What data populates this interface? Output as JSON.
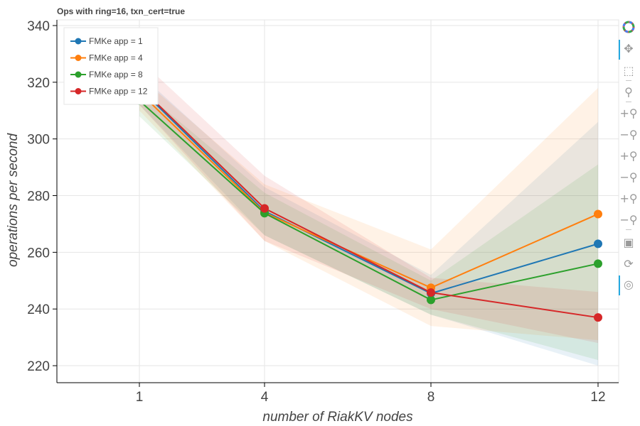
{
  "chart_data": {
    "type": "line",
    "title": "Ops with ring=16, txn_cert=true",
    "xlabel": "number of RiakKV nodes",
    "ylabel": "operations per second",
    "x_categories": [
      "1",
      "4",
      "8",
      "12"
    ],
    "ylim": [
      214,
      342
    ],
    "yticks": [
      220,
      240,
      260,
      280,
      300,
      320,
      340
    ],
    "grid": true,
    "legend_position": "top-left",
    "series": [
      {
        "name": "FMKe app = 1",
        "color": "#1f77b4",
        "values": [
          318.0,
          274.5,
          245.5,
          263.0
        ],
        "band_low": [
          312.0,
          266.0,
          238.0,
          220.0
        ],
        "band_high": [
          323.0,
          283.0,
          252.0,
          306.0
        ]
      },
      {
        "name": "FMKe app = 4",
        "color": "#ff7f0e",
        "values": [
          316.5,
          274.0,
          247.5,
          273.5
        ],
        "band_low": [
          310.0,
          264.0,
          234.0,
          229.0
        ],
        "band_high": [
          322.0,
          284.0,
          261.0,
          318.0
        ]
      },
      {
        "name": "FMKe app = 8",
        "color": "#2ca02c",
        "values": [
          313.5,
          273.8,
          243.2,
          256.0
        ],
        "band_low": [
          308.0,
          266.0,
          238.0,
          222.0
        ],
        "band_high": [
          318.0,
          281.0,
          250.0,
          291.0
        ]
      },
      {
        "name": "FMKe app = 12",
        "color": "#d62728",
        "values": [
          318.5,
          275.5,
          245.8,
          237.0
        ],
        "band_low": [
          312.0,
          264.0,
          240.0,
          228.0
        ],
        "band_high": [
          328.0,
          287.0,
          251.0,
          246.0
        ]
      }
    ]
  },
  "toolbar": {
    "tools": [
      {
        "icon": "bokeh-logo-icon",
        "glyph": "",
        "active": false
      },
      {
        "icon": "pan-icon",
        "glyph": "✥",
        "active": true
      },
      {
        "icon": "box-zoom-icon",
        "glyph": "⬚",
        "active": false
      },
      {
        "icon": "wheel-zoom-icon",
        "glyph": "⚲",
        "active": false
      },
      {
        "icon": "zoom-in-icon",
        "glyph": "+⚲",
        "active": false
      },
      {
        "icon": "zoom-out-icon",
        "glyph": "−⚲",
        "active": false
      },
      {
        "icon": "x-zoom-in-icon",
        "glyph": "+⚲",
        "active": false
      },
      {
        "icon": "x-zoom-out-icon",
        "glyph": "−⚲",
        "active": false
      },
      {
        "icon": "y-zoom-in-icon",
        "glyph": "+⚲",
        "active": false
      },
      {
        "icon": "y-zoom-out-icon",
        "glyph": "−⚲",
        "active": false
      },
      {
        "icon": "save-icon",
        "glyph": "▣",
        "active": false
      },
      {
        "icon": "reset-icon",
        "glyph": "⟳",
        "active": false
      },
      {
        "icon": "hover-icon",
        "glyph": "◎",
        "active": true
      }
    ]
  }
}
